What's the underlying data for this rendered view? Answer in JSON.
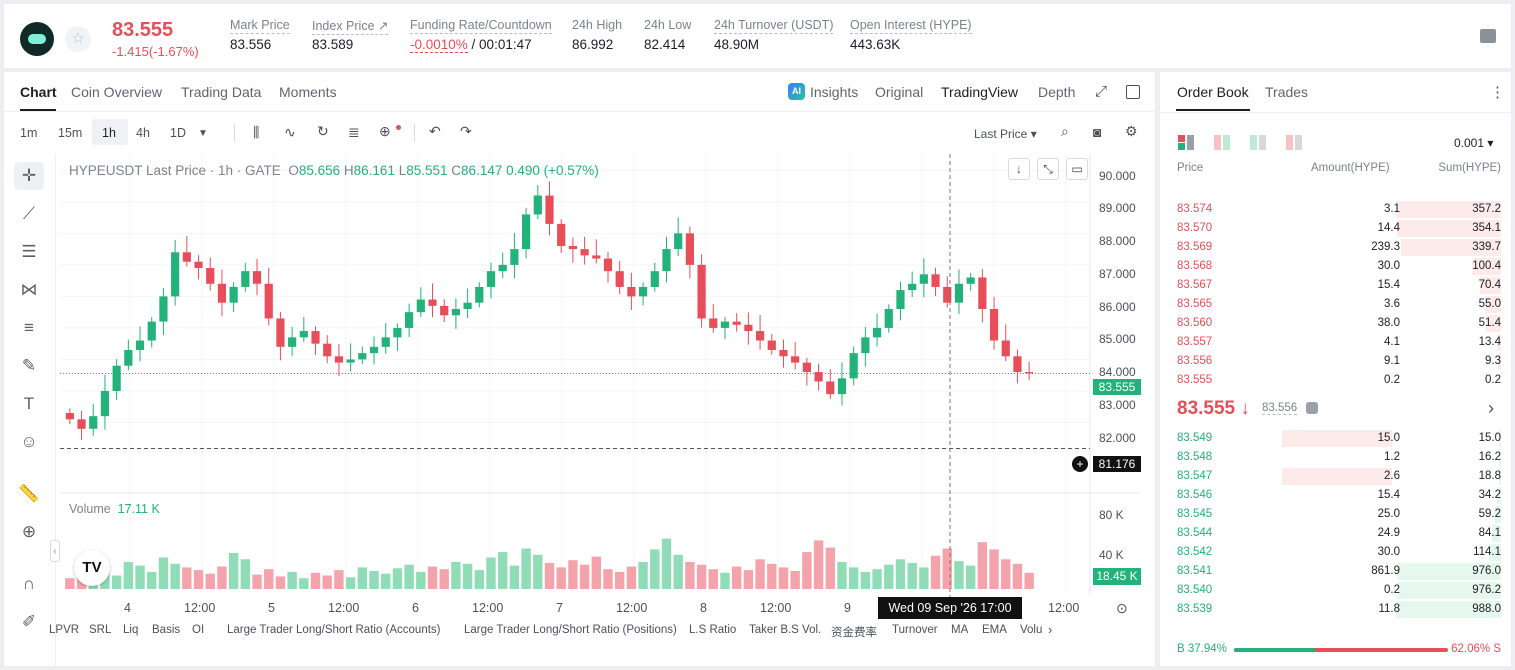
{
  "header": {
    "last_price": "83.555",
    "change": "-1.415(-1.67%)",
    "star_icon": "☆",
    "stats": [
      {
        "label": "Mark Price",
        "value": "83.556"
      },
      {
        "label": "Index Price ↗",
        "value": "83.589"
      },
      {
        "label": "Funding Rate/Countdown",
        "value_red": "-0.0010%",
        "value": " / 00:01:47"
      },
      {
        "label": "24h High",
        "value": "86.992"
      },
      {
        "label": "24h Low",
        "value": "82.414"
      },
      {
        "label": "24h Turnover (USDT)",
        "value": "48.90M"
      },
      {
        "label": "Open Interest (HYPE)",
        "value": "443.63K"
      }
    ]
  },
  "chart_tabs": {
    "chart": "Chart",
    "coin_overview": "Coin Overview",
    "trading_data": "Trading Data",
    "moments": "Moments",
    "insights": "Insights",
    "original": "Original",
    "tradingview": "TradingView",
    "depth": "Depth",
    "ai_badge": "AI"
  },
  "toolbar": {
    "intervals": [
      "1m",
      "15m",
      "1h",
      "4h",
      "1D"
    ],
    "active_interval": "1h",
    "dropdown_arrow": "▼",
    "last_price_select": "Last Price ▾"
  },
  "chart_info": {
    "symbol_line": "HYPEUSDT Last Price · 1h · GATE",
    "o_label": "O",
    "o": "85.656",
    "h_label": "H",
    "h": "86.161",
    "l_label": "L",
    "l": "85.551",
    "c_label": "C",
    "c": "86.147",
    "chg": "0.490 (+0.57%)",
    "volume_label": "Volume",
    "volume_value": "17.11 K",
    "tv_logo": "TV"
  },
  "chart_data": {
    "type": "candlestick",
    "symbol": "HYPEUSDT",
    "interval": "1h",
    "price_ticks": [
      "90.000",
      "89.000",
      "88.000",
      "87.000",
      "86.000",
      "85.000",
      "84.000",
      "83.000",
      "82.000"
    ],
    "volume_ticks": [
      "80 K",
      "40 K"
    ],
    "last_price_tag": "83.555",
    "crosshair_price_tag": "81.176",
    "volume_tag": "18.45 K",
    "x_labels": [
      "4",
      "12:00",
      "5",
      "12:00",
      "6",
      "12:00",
      "7",
      "12:00",
      "8",
      "12:00",
      "9",
      "12:00"
    ],
    "crosshair_time": "Wed 09 Sep '26   17:00",
    "close_path": [
      82.1,
      81.8,
      82.2,
      83.0,
      83.8,
      84.3,
      84.6,
      85.2,
      86.0,
      87.4,
      87.1,
      86.9,
      86.4,
      85.8,
      86.3,
      86.8,
      86.4,
      85.3,
      84.4,
      84.7,
      84.9,
      84.5,
      84.1,
      83.9,
      84.0,
      84.2,
      84.4,
      84.7,
      85.0,
      85.5,
      85.9,
      85.7,
      85.4,
      85.6,
      85.8,
      86.3,
      86.8,
      87.0,
      87.5,
      88.6,
      89.2,
      88.3,
      87.6,
      87.5,
      87.3,
      87.2,
      86.8,
      86.3,
      86.0,
      86.3,
      86.8,
      87.5,
      88.0,
      87.0,
      85.3,
      85.0,
      85.2,
      85.1,
      84.9,
      84.6,
      84.3,
      84.1,
      83.9,
      83.6,
      83.3,
      82.9,
      83.4,
      84.2,
      84.7,
      85.0,
      85.6,
      86.2,
      86.4,
      86.7,
      86.3,
      85.8,
      86.4,
      86.6,
      85.6,
      84.6,
      84.1,
      83.6,
      83.555
    ],
    "volume_path": [
      12,
      18,
      9,
      22,
      15,
      30,
      26,
      19,
      35,
      28,
      24,
      21,
      17,
      25,
      40,
      33,
      16,
      22,
      14,
      19,
      12,
      18,
      15,
      21,
      13,
      24,
      20,
      17,
      23,
      27,
      19,
      25,
      22,
      30,
      28,
      21,
      35,
      41,
      26,
      45,
      38,
      29,
      24,
      32,
      27,
      36,
      22,
      19,
      25,
      30,
      44,
      56,
      38,
      30,
      27,
      22,
      18,
      25,
      21,
      33,
      28,
      24,
      20,
      41,
      54,
      46,
      30,
      24,
      19,
      22,
      27,
      33,
      29,
      24,
      37,
      45,
      31,
      26,
      52,
      44,
      33,
      28,
      18
    ]
  },
  "axis_labels": {
    "price_ticks": [
      "90.000",
      "89.000",
      "88.000",
      "87.000",
      "86.000",
      "85.000",
      "84.000",
      "83.000",
      "82.000"
    ],
    "volume_ticks": [
      "80 K",
      "40 K"
    ],
    "last_price_tag": "83.555",
    "crosshair_price_tag": "81.176",
    "volume_tag": "18.45 K",
    "x_labels": [
      "4",
      "12:00",
      "5",
      "12:00",
      "6",
      "12:00",
      "7",
      "12:00",
      "8",
      "12:00",
      "9",
      "12:00"
    ],
    "crosshair_time": "Wed 09 Sep '26   17:00"
  },
  "indicator_bar": [
    "LPVR",
    "SRL",
    "Liq",
    "Basis",
    "OI",
    "Large Trader Long/Short Ratio (Accounts)",
    "Large Trader Long/Short Ratio (Positions)",
    "L.S Ratio",
    "Taker B.S Vol.",
    "资金费率",
    "Turnover",
    "MA",
    "EMA",
    "Volu"
  ],
  "order_book": {
    "tab_order_book": "Order Book",
    "tab_trades": "Trades",
    "precision": "0.001 ▾",
    "col_price": "Price",
    "col_amount": "Amount(HYPE)",
    "col_sum": "Sum(HYPE)",
    "asks": [
      {
        "price": "83.574",
        "amount": "3.1",
        "sum": "357.2",
        "depth": 1.0
      },
      {
        "price": "83.570",
        "amount": "14.4",
        "sum": "354.1",
        "depth": 0.99
      },
      {
        "price": "83.569",
        "amount": "239.3",
        "sum": "339.7",
        "depth": 0.95
      },
      {
        "price": "83.568",
        "amount": "30.0",
        "sum": "100.4",
        "depth": 0.28
      },
      {
        "price": "83.567",
        "amount": "15.4",
        "sum": "70.4",
        "depth": 0.2
      },
      {
        "price": "83.565",
        "amount": "3.6",
        "sum": "55.0",
        "depth": 0.15
      },
      {
        "price": "83.560",
        "amount": "38.0",
        "sum": "51.4",
        "depth": 0.14
      },
      {
        "price": "83.557",
        "amount": "4.1",
        "sum": "13.4",
        "depth": 0.04
      },
      {
        "price": "83.556",
        "amount": "9.1",
        "sum": "9.3",
        "depth": 0.03
      },
      {
        "price": "83.555",
        "amount": "0.2",
        "sum": "0.2",
        "depth": 0.0
      }
    ],
    "mid_price": "83.555 ↓",
    "mid_mark": "83.556",
    "mid_arrow": "›",
    "bids": [
      {
        "price": "83.549",
        "amount": "15.0",
        "sum": "15.0",
        "depth": 0.015,
        "abar": 1
      },
      {
        "price": "83.548",
        "amount": "1.2",
        "sum": "16.2",
        "depth": 0.017,
        "abar": 0
      },
      {
        "price": "83.547",
        "amount": "2.6",
        "sum": "18.8",
        "depth": 0.019,
        "abar": 1
      },
      {
        "price": "83.546",
        "amount": "15.4",
        "sum": "34.2",
        "depth": 0.035,
        "abar": 0
      },
      {
        "price": "83.545",
        "amount": "25.0",
        "sum": "59.2",
        "depth": 0.06,
        "abar": 0
      },
      {
        "price": "83.544",
        "amount": "24.9",
        "sum": "84.1",
        "depth": 0.085,
        "abar": 0
      },
      {
        "price": "83.542",
        "amount": "30.0",
        "sum": "114.1",
        "depth": 0.115,
        "abar": 0
      },
      {
        "price": "83.541",
        "amount": "861.9",
        "sum": "976.0",
        "depth": 0.99,
        "abar": 0
      },
      {
        "price": "83.540",
        "amount": "0.2",
        "sum": "976.2",
        "depth": 0.99,
        "abar": 0
      },
      {
        "price": "83.539",
        "amount": "11.8",
        "sum": "988.0",
        "depth": 1.0,
        "abar": 0
      }
    ],
    "buy_ratio": "B 37.94%",
    "sell_ratio": "62.06% S",
    "buy_pct": 37.94
  },
  "colors": {
    "up": "#22b27a",
    "down": "#e84e59",
    "up_bg": "#e6f7ee",
    "down_bg": "#fdeaeb"
  }
}
